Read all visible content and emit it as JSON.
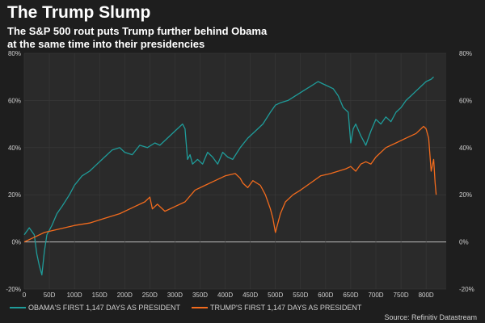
{
  "header": {
    "title": "The Trump Slump",
    "subtitle_line1": "The S&P 500 rout puts Trump further behind Obama",
    "subtitle_line2": "at the same time into their presidencies"
  },
  "source": "Source: Refinitiv Datastream",
  "colors": {
    "background": "#1e1e1e",
    "plot_bg": "#2a2a2a",
    "obama": "#1f9c9a",
    "trump": "#f26b1d",
    "grid": "#3a3a3a",
    "zero_line": "#bdbdbd",
    "tick_text": "#cfcfcf"
  },
  "chart_data": {
    "type": "line",
    "xlabel": "",
    "ylabel": "",
    "xlim": [
      0,
      840
    ],
    "ylim": [
      -20,
      80
    ],
    "x_ticks": [
      "0",
      "50D",
      "100D",
      "150D",
      "200D",
      "250D",
      "300D",
      "350D",
      "400D",
      "450D",
      "500D",
      "550D",
      "600D",
      "650D",
      "700D",
      "750D",
      "800D"
    ],
    "y_ticks": [
      "-20%",
      "0%",
      "20%",
      "40%",
      "60%",
      "80%"
    ],
    "grid": true,
    "legend_position": "bottom-left",
    "series": [
      {
        "name": "OBAMA'S FIRST 1,147 DAYS AS PRESIDENT",
        "x": [
          0,
          10,
          20,
          25,
          30,
          35,
          40,
          45,
          55,
          65,
          75,
          90,
          100,
          115,
          130,
          145,
          160,
          175,
          190,
          200,
          215,
          230,
          245,
          260,
          270,
          285,
          300,
          315,
          320,
          325,
          330,
          335,
          345,
          355,
          365,
          375,
          385,
          395,
          405,
          415,
          430,
          445,
          460,
          475,
          490,
          500,
          510,
          525,
          540,
          555,
          570,
          585,
          595,
          605,
          615,
          625,
          635,
          645,
          650,
          655,
          660,
          670,
          680,
          690,
          700,
          710,
          720,
          730,
          740,
          750,
          760,
          770,
          780,
          790,
          800,
          810,
          815
        ],
        "y": [
          3,
          6,
          3,
          -5,
          -10,
          -14,
          -4,
          3,
          7,
          12,
          15,
          20,
          24,
          28,
          30,
          33,
          36,
          39,
          40,
          38,
          37,
          41,
          40,
          42,
          41,
          44,
          47,
          50,
          48,
          35,
          37,
          33,
          35,
          33,
          38,
          36,
          33,
          38,
          36,
          35,
          40,
          44,
          47,
          50,
          55,
          58,
          59,
          60,
          62,
          64,
          66,
          68,
          67,
          66,
          65,
          62,
          57,
          55,
          42,
          48,
          50,
          45,
          41,
          47,
          52,
          50,
          53,
          51,
          55,
          57,
          60,
          62,
          64,
          66,
          68,
          69,
          70
        ]
      },
      {
        "name": "TRUMP'S FIRST 1,147 DAYS AS PRESIDENT",
        "x": [
          0,
          20,
          40,
          60,
          80,
          100,
          130,
          160,
          190,
          220,
          240,
          250,
          255,
          265,
          280,
          300,
          320,
          340,
          360,
          380,
          400,
          420,
          430,
          435,
          445,
          455,
          470,
          480,
          490,
          495,
          500,
          510,
          520,
          535,
          550,
          570,
          590,
          610,
          625,
          640,
          650,
          660,
          670,
          680,
          690,
          700,
          720,
          740,
          760,
          780,
          795,
          800,
          805,
          810,
          815,
          818,
          820
        ],
        "y": [
          0,
          2,
          4,
          5,
          6,
          7,
          8,
          10,
          12,
          15,
          17,
          19,
          14,
          16,
          13,
          15,
          17,
          22,
          24,
          26,
          28,
          29,
          27,
          25,
          23,
          26,
          24,
          20,
          14,
          10,
          4,
          12,
          17,
          20,
          22,
          25,
          28,
          29,
          30,
          31,
          32,
          30,
          33,
          34,
          33,
          36,
          40,
          42,
          44,
          46,
          49,
          48,
          44,
          30,
          35,
          25,
          20
        ]
      }
    ]
  }
}
